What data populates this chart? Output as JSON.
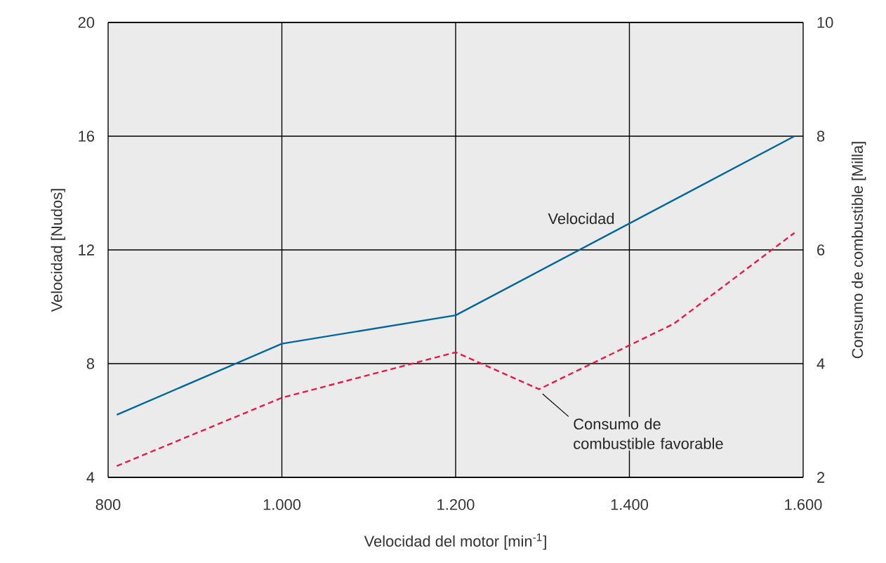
{
  "chart_data": {
    "type": "line",
    "xlabel": "Velocidad del motor [min$^{-1}$]",
    "ylabel": "Velocidad [Nudos]",
    "y2label": "Consumo de combustible [Milla]",
    "xlim": [
      800,
      1600
    ],
    "ylim": [
      4,
      20
    ],
    "y2lim": [
      2,
      10
    ],
    "xticks": [
      800,
      {
        "value": 1000,
        "label": "1.000"
      },
      {
        "value": 1200,
        "label": "1.200"
      },
      {
        "value": 1400,
        "label": "1.400"
      },
      {
        "value": 1600,
        "label": "1.600"
      }
    ],
    "yticks": [
      4,
      8,
      12,
      16,
      20
    ],
    "y2ticks": [
      2,
      4,
      6,
      8,
      10
    ],
    "grid": true,
    "series": [
      {
        "name": "Velocidad",
        "color": "#00679a",
        "line_style": "solid",
        "x": [
          810,
          1000,
          1200,
          1590
        ],
        "values": [
          6.2,
          8.7,
          9.7,
          16.0
        ]
      },
      {
        "name": "Consumo de combustible favorable",
        "color": "#e5194a",
        "line_style": "dashed",
        "axis": "y2",
        "x": [
          810,
          1000,
          1200,
          1296,
          1451,
          1590
        ],
        "values": [
          2.2,
          3.4,
          4.2,
          3.55,
          4.7,
          6.3
        ]
      }
    ]
  }
}
